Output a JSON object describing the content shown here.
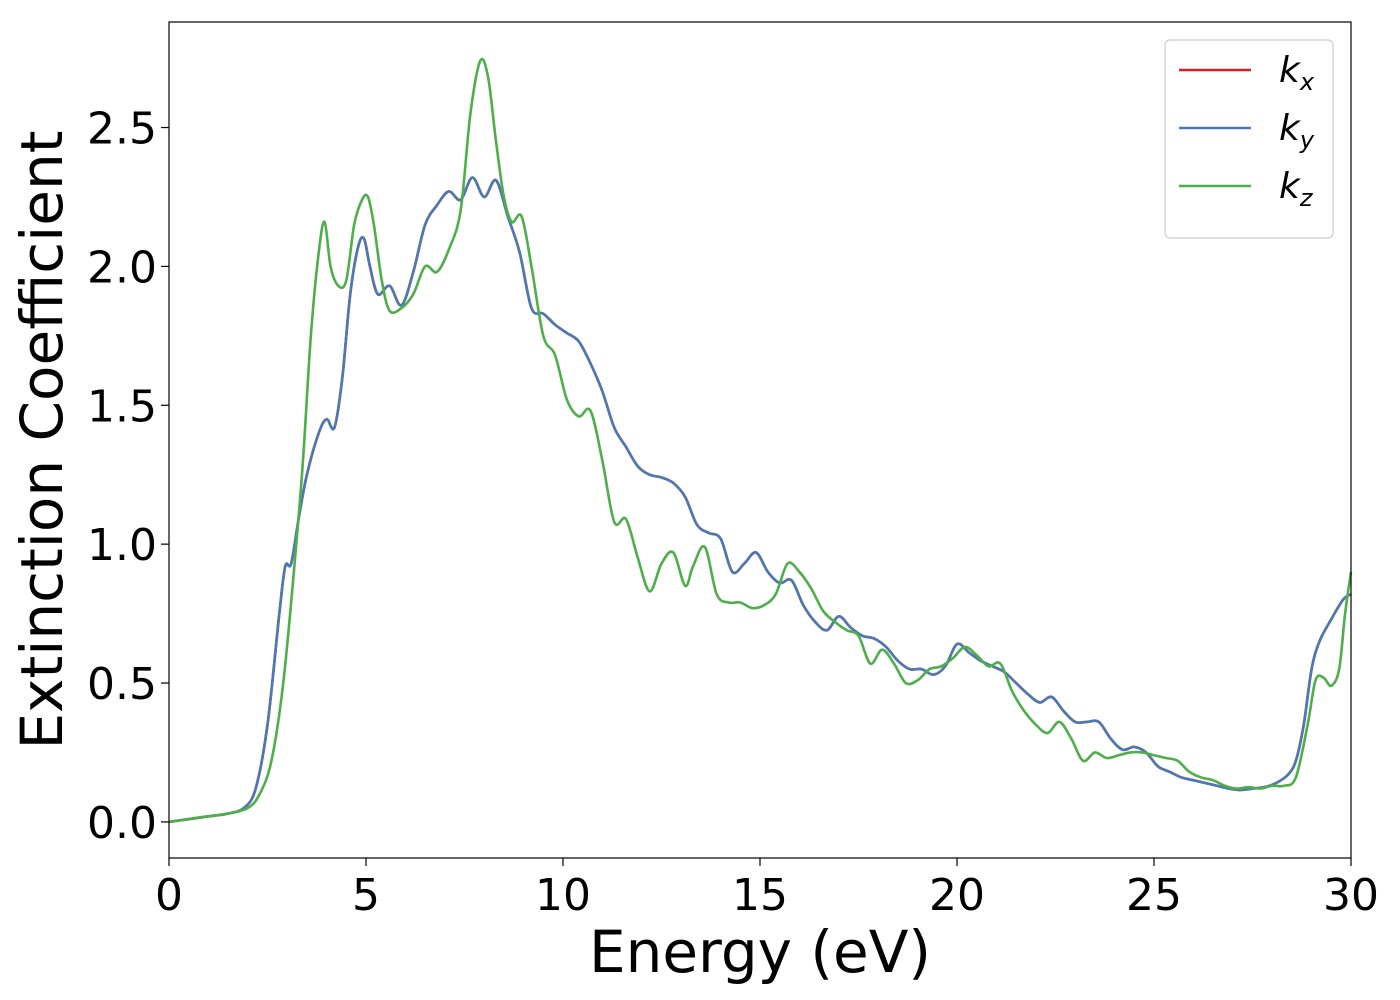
{
  "chart_data": {
    "type": "line",
    "title": "",
    "xlabel": "Energy (eV)",
    "ylabel": "Extinction Coefficient",
    "xlim": [
      0,
      30
    ],
    "ylim": [
      -0.13,
      2.88
    ],
    "xticks": [
      0,
      5,
      10,
      15,
      20,
      25,
      30
    ],
    "xtick_labels": [
      "0",
      "5",
      "10",
      "15",
      "20",
      "25",
      "30"
    ],
    "yticks": [
      0.0,
      0.5,
      1.0,
      1.5,
      2.0,
      2.5
    ],
    "ytick_labels": [
      "0.0",
      "0.5",
      "1.0",
      "1.5",
      "2.0",
      "2.5"
    ],
    "grid": false,
    "legend_position": "top-right",
    "series": [
      {
        "name": "k",
        "subscript": "x",
        "color": "#e41a1c",
        "x": [
          0,
          1,
          1.5,
          1.9,
          2.2,
          2.5,
          2.8,
          2.95,
          3.1,
          3.3,
          3.5,
          3.8,
          4.0,
          4.2,
          4.4,
          4.6,
          4.8,
          4.95,
          5.1,
          5.3,
          5.6,
          5.9,
          6.2,
          6.5,
          6.8,
          7.1,
          7.4,
          7.7,
          8.0,
          8.3,
          8.6,
          8.9,
          9.2,
          9.5,
          9.8,
          10.1,
          10.4,
          10.7,
          11.0,
          11.3,
          11.6,
          11.9,
          12.2,
          12.5,
          12.8,
          13.1,
          13.4,
          13.7,
          14.0,
          14.3,
          14.6,
          14.9,
          15.2,
          15.5,
          15.8,
          16.1,
          16.4,
          16.7,
          17.0,
          17.3,
          17.6,
          17.9,
          18.2,
          18.5,
          18.8,
          19.1,
          19.4,
          19.7,
          20.0,
          20.3,
          20.6,
          20.9,
          21.2,
          21.5,
          21.8,
          22.1,
          22.4,
          22.7,
          23.0,
          23.3,
          23.6,
          23.9,
          24.2,
          24.5,
          24.8,
          25.1,
          25.4,
          25.7,
          26.0,
          26.3,
          26.6,
          26.9,
          27.2,
          27.5,
          27.8,
          28.1,
          28.4,
          28.6,
          28.8,
          29.0,
          29.2,
          29.5,
          29.8,
          30.0
        ],
        "y": [
          0.0,
          0.02,
          0.03,
          0.05,
          0.12,
          0.35,
          0.75,
          0.92,
          0.93,
          1.1,
          1.25,
          1.4,
          1.45,
          1.42,
          1.6,
          1.9,
          2.07,
          2.1,
          2.0,
          1.9,
          1.93,
          1.86,
          1.98,
          2.15,
          2.22,
          2.27,
          2.24,
          2.32,
          2.25,
          2.31,
          2.18,
          2.05,
          1.85,
          1.83,
          1.79,
          1.76,
          1.73,
          1.65,
          1.55,
          1.42,
          1.35,
          1.28,
          1.25,
          1.24,
          1.22,
          1.17,
          1.07,
          1.04,
          1.02,
          0.9,
          0.93,
          0.97,
          0.9,
          0.86,
          0.87,
          0.78,
          0.72,
          0.69,
          0.74,
          0.7,
          0.67,
          0.66,
          0.63,
          0.58,
          0.55,
          0.55,
          0.53,
          0.56,
          0.64,
          0.61,
          0.58,
          0.56,
          0.54,
          0.5,
          0.46,
          0.43,
          0.45,
          0.4,
          0.36,
          0.36,
          0.36,
          0.3,
          0.26,
          0.27,
          0.25,
          0.2,
          0.18,
          0.16,
          0.15,
          0.14,
          0.13,
          0.12,
          0.115,
          0.12,
          0.125,
          0.14,
          0.17,
          0.22,
          0.35,
          0.55,
          0.65,
          0.73,
          0.8,
          0.82
        ]
      },
      {
        "name": "k",
        "subscript": "y",
        "color": "#4a7ab5",
        "x": [
          0,
          1,
          1.5,
          1.9,
          2.2,
          2.5,
          2.8,
          2.95,
          3.1,
          3.3,
          3.5,
          3.8,
          4.0,
          4.2,
          4.4,
          4.6,
          4.8,
          4.95,
          5.1,
          5.3,
          5.6,
          5.9,
          6.2,
          6.5,
          6.8,
          7.1,
          7.4,
          7.7,
          8.0,
          8.3,
          8.6,
          8.9,
          9.2,
          9.5,
          9.8,
          10.1,
          10.4,
          10.7,
          11.0,
          11.3,
          11.6,
          11.9,
          12.2,
          12.5,
          12.8,
          13.1,
          13.4,
          13.7,
          14.0,
          14.3,
          14.6,
          14.9,
          15.2,
          15.5,
          15.8,
          16.1,
          16.4,
          16.7,
          17.0,
          17.3,
          17.6,
          17.9,
          18.2,
          18.5,
          18.8,
          19.1,
          19.4,
          19.7,
          20.0,
          20.3,
          20.6,
          20.9,
          21.2,
          21.5,
          21.8,
          22.1,
          22.4,
          22.7,
          23.0,
          23.3,
          23.6,
          23.9,
          24.2,
          24.5,
          24.8,
          25.1,
          25.4,
          25.7,
          26.0,
          26.3,
          26.6,
          26.9,
          27.2,
          27.5,
          27.8,
          28.1,
          28.4,
          28.6,
          28.8,
          29.0,
          29.2,
          29.5,
          29.8,
          30.0
        ],
        "y": [
          0.0,
          0.02,
          0.03,
          0.05,
          0.12,
          0.35,
          0.75,
          0.92,
          0.93,
          1.1,
          1.25,
          1.4,
          1.45,
          1.42,
          1.6,
          1.9,
          2.07,
          2.1,
          2.0,
          1.9,
          1.93,
          1.86,
          1.98,
          2.15,
          2.22,
          2.27,
          2.24,
          2.32,
          2.25,
          2.31,
          2.18,
          2.05,
          1.85,
          1.83,
          1.79,
          1.76,
          1.73,
          1.65,
          1.55,
          1.42,
          1.35,
          1.28,
          1.25,
          1.24,
          1.22,
          1.17,
          1.07,
          1.04,
          1.02,
          0.9,
          0.93,
          0.97,
          0.9,
          0.86,
          0.87,
          0.78,
          0.72,
          0.69,
          0.74,
          0.7,
          0.67,
          0.66,
          0.63,
          0.58,
          0.55,
          0.55,
          0.53,
          0.56,
          0.64,
          0.61,
          0.58,
          0.56,
          0.54,
          0.5,
          0.46,
          0.43,
          0.45,
          0.4,
          0.36,
          0.36,
          0.36,
          0.3,
          0.26,
          0.27,
          0.25,
          0.2,
          0.18,
          0.16,
          0.15,
          0.14,
          0.13,
          0.12,
          0.115,
          0.12,
          0.125,
          0.14,
          0.17,
          0.22,
          0.35,
          0.55,
          0.65,
          0.73,
          0.8,
          0.82
        ]
      },
      {
        "name": "k",
        "subscript": "z",
        "color": "#4daf4a",
        "x": [
          0,
          1,
          1.5,
          2.0,
          2.3,
          2.6,
          2.9,
          3.2,
          3.4,
          3.6,
          3.8,
          3.95,
          4.1,
          4.3,
          4.5,
          4.7,
          4.9,
          5.05,
          5.2,
          5.4,
          5.6,
          5.9,
          6.2,
          6.5,
          6.8,
          7.1,
          7.4,
          7.65,
          7.9,
          8.1,
          8.3,
          8.5,
          8.7,
          8.95,
          9.2,
          9.5,
          9.8,
          10.1,
          10.4,
          10.7,
          11.0,
          11.3,
          11.6,
          11.9,
          12.2,
          12.5,
          12.8,
          13.1,
          13.3,
          13.6,
          13.9,
          14.2,
          14.5,
          14.8,
          15.1,
          15.4,
          15.7,
          16.0,
          16.3,
          16.6,
          16.9,
          17.2,
          17.5,
          17.8,
          18.1,
          18.4,
          18.7,
          19.0,
          19.3,
          19.6,
          19.9,
          20.2,
          20.5,
          20.8,
          21.1,
          21.4,
          21.7,
          22.0,
          22.3,
          22.6,
          22.9,
          23.2,
          23.5,
          23.8,
          24.1,
          24.4,
          24.7,
          25.0,
          25.3,
          25.6,
          25.9,
          26.2,
          26.5,
          26.8,
          27.1,
          27.4,
          27.7,
          28.0,
          28.3,
          28.6,
          28.9,
          29.1,
          29.3,
          29.5,
          29.7,
          29.85,
          30.0
        ],
        "y": [
          0.0,
          0.02,
          0.03,
          0.05,
          0.1,
          0.22,
          0.5,
          0.95,
          1.3,
          1.75,
          2.05,
          2.16,
          2.0,
          1.93,
          1.95,
          2.15,
          2.24,
          2.25,
          2.15,
          1.95,
          1.84,
          1.85,
          1.9,
          2.0,
          1.98,
          2.06,
          2.2,
          2.55,
          2.74,
          2.68,
          2.45,
          2.25,
          2.16,
          2.18,
          2.0,
          1.75,
          1.68,
          1.52,
          1.46,
          1.48,
          1.3,
          1.08,
          1.09,
          0.95,
          0.83,
          0.93,
          0.97,
          0.85,
          0.92,
          0.99,
          0.82,
          0.79,
          0.79,
          0.77,
          0.78,
          0.82,
          0.93,
          0.9,
          0.84,
          0.76,
          0.72,
          0.69,
          0.67,
          0.57,
          0.62,
          0.57,
          0.5,
          0.51,
          0.55,
          0.56,
          0.59,
          0.63,
          0.6,
          0.56,
          0.57,
          0.47,
          0.4,
          0.35,
          0.32,
          0.36,
          0.3,
          0.22,
          0.25,
          0.23,
          0.24,
          0.25,
          0.25,
          0.24,
          0.23,
          0.22,
          0.18,
          0.16,
          0.15,
          0.13,
          0.12,
          0.125,
          0.12,
          0.13,
          0.13,
          0.16,
          0.35,
          0.51,
          0.52,
          0.49,
          0.55,
          0.75,
          0.9
        ]
      }
    ]
  }
}
